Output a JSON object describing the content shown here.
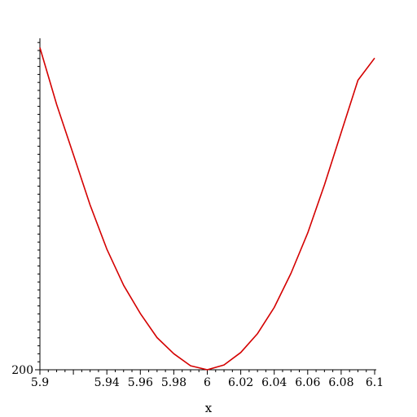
{
  "chart_data": {
    "type": "line",
    "title": "",
    "xlabel": "x",
    "ylabel": "",
    "xlim": [
      5.9,
      6.1
    ],
    "ylim": [
      200,
      200.8
    ],
    "x_ticks": [
      5.9,
      5.94,
      5.96,
      5.98,
      6.0,
      6.02,
      6.04,
      6.06,
      6.08,
      6.1
    ],
    "x_tick_labels": [
      "5.9",
      "5.94",
      "5.96",
      "5.98",
      "6",
      "6.02",
      "6.04",
      "6.06",
      "6.08",
      "6.1"
    ],
    "y_ticks": [
      200
    ],
    "y_tick_labels": [
      "200"
    ],
    "grid": false,
    "legend": "none",
    "series": [
      {
        "color": "#d40000",
        "x": [
          5.9,
          5.91,
          5.92,
          5.93,
          5.94,
          5.95,
          5.96,
          5.97,
          5.98,
          5.99,
          6.0,
          6.01,
          6.02,
          6.03,
          6.04,
          6.05,
          6.06,
          6.07,
          6.08,
          6.09,
          6.1
        ],
        "y": [
          200.801,
          200.66,
          200.535,
          200.41,
          200.3,
          200.21,
          200.14,
          200.08,
          200.04,
          200.01,
          200.0,
          200.012,
          200.043,
          200.09,
          200.155,
          200.24,
          200.34,
          200.46,
          200.59,
          200.72,
          200.775
        ]
      }
    ]
  }
}
